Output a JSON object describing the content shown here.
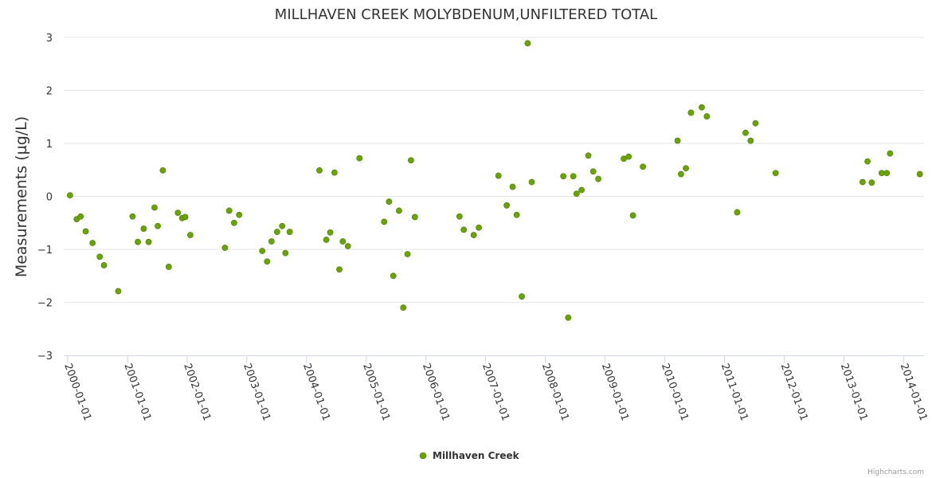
{
  "chart_data": {
    "type": "scatter",
    "title": "MILLHAVEN CREEK MOLYBDENUM,UNFILTERED TOTAL",
    "xlabel": "",
    "ylabel": "Measurements (µg/L)",
    "ylim": [
      -3,
      3
    ],
    "yticks": [
      "3",
      "2",
      "1",
      "0",
      "−1",
      "−2",
      "−3"
    ],
    "xlim": [
      "2000-01-01",
      "2014-05-01"
    ],
    "xticks": [
      "2000-01-01",
      "2001-01-01",
      "2002-01-01",
      "2003-01-01",
      "2004-01-01",
      "2005-01-01",
      "2006-01-01",
      "2007-01-01",
      "2008-01-01",
      "2009-01-01",
      "2010-01-01",
      "2011-01-01",
      "2012-01-01",
      "2013-01-01",
      "2014-01-01"
    ],
    "grid": true,
    "legend_position": "bottom-center",
    "series": [
      {
        "name": "Millhaven Creek",
        "color": "#6aa305",
        "points": [
          {
            "x": "2000-01-15",
            "y": 0.02
          },
          {
            "x": "2000-02-25",
            "y": -0.43
          },
          {
            "x": "2000-03-20",
            "y": -0.38
          },
          {
            "x": "2000-04-20",
            "y": -0.66
          },
          {
            "x": "2000-06-01",
            "y": -0.88
          },
          {
            "x": "2000-07-15",
            "y": -1.14
          },
          {
            "x": "2000-08-10",
            "y": -1.3
          },
          {
            "x": "2000-11-05",
            "y": -1.79
          },
          {
            "x": "2001-02-01",
            "y": -0.38
          },
          {
            "x": "2001-03-05",
            "y": -0.86
          },
          {
            "x": "2001-04-10",
            "y": -0.61
          },
          {
            "x": "2001-05-10",
            "y": -0.86
          },
          {
            "x": "2001-06-15",
            "y": -0.21
          },
          {
            "x": "2001-07-05",
            "y": -0.56
          },
          {
            "x": "2001-08-05",
            "y": 0.49
          },
          {
            "x": "2001-09-10",
            "y": -1.33
          },
          {
            "x": "2001-11-05",
            "y": -0.31
          },
          {
            "x": "2001-12-01",
            "y": -0.41
          },
          {
            "x": "2001-12-20",
            "y": -0.39
          },
          {
            "x": "2002-01-20",
            "y": -0.73
          },
          {
            "x": "2002-08-20",
            "y": -0.97
          },
          {
            "x": "2002-09-15",
            "y": -0.27
          },
          {
            "x": "2002-10-15",
            "y": -0.5
          },
          {
            "x": "2002-11-15",
            "y": -0.35
          },
          {
            "x": "2003-04-05",
            "y": -1.03
          },
          {
            "x": "2003-05-05",
            "y": -1.23
          },
          {
            "x": "2003-06-01",
            "y": -0.85
          },
          {
            "x": "2003-07-05",
            "y": -0.67
          },
          {
            "x": "2003-08-05",
            "y": -0.56
          },
          {
            "x": "2003-08-25",
            "y": -1.07
          },
          {
            "x": "2003-09-20",
            "y": -0.67
          },
          {
            "x": "2004-03-20",
            "y": 0.49
          },
          {
            "x": "2004-05-01",
            "y": -0.82
          },
          {
            "x": "2004-05-25",
            "y": -0.68
          },
          {
            "x": "2004-06-20",
            "y": 0.45
          },
          {
            "x": "2004-07-20",
            "y": -1.38
          },
          {
            "x": "2004-08-10",
            "y": -0.85
          },
          {
            "x": "2004-09-10",
            "y": -0.94
          },
          {
            "x": "2004-11-20",
            "y": 0.72
          },
          {
            "x": "2005-04-20",
            "y": -0.48
          },
          {
            "x": "2005-05-20",
            "y": -0.1
          },
          {
            "x": "2005-06-15",
            "y": -1.5
          },
          {
            "x": "2005-07-20",
            "y": -0.27
          },
          {
            "x": "2005-08-15",
            "y": -2.1
          },
          {
            "x": "2005-09-10",
            "y": -1.09
          },
          {
            "x": "2005-10-01",
            "y": 0.68
          },
          {
            "x": "2005-10-25",
            "y": -0.39
          },
          {
            "x": "2006-07-25",
            "y": -0.38
          },
          {
            "x": "2006-08-20",
            "y": -0.63
          },
          {
            "x": "2006-10-20",
            "y": -0.73
          },
          {
            "x": "2006-11-20",
            "y": -0.59
          },
          {
            "x": "2007-03-20",
            "y": 0.39
          },
          {
            "x": "2007-05-10",
            "y": -0.17
          },
          {
            "x": "2007-06-15",
            "y": 0.18
          },
          {
            "x": "2007-07-10",
            "y": -0.35
          },
          {
            "x": "2007-08-10",
            "y": -1.89
          },
          {
            "x": "2007-09-15",
            "y": 2.89
          },
          {
            "x": "2007-10-10",
            "y": 0.27
          },
          {
            "x": "2008-04-20",
            "y": 0.38
          },
          {
            "x": "2008-05-20",
            "y": -2.29
          },
          {
            "x": "2008-06-20",
            "y": 0.38
          },
          {
            "x": "2008-07-10",
            "y": 0.05
          },
          {
            "x": "2008-08-10",
            "y": 0.12
          },
          {
            "x": "2008-09-20",
            "y": 0.77
          },
          {
            "x": "2008-10-20",
            "y": 0.47
          },
          {
            "x": "2008-11-20",
            "y": 0.33
          },
          {
            "x": "2009-04-25",
            "y": 0.71
          },
          {
            "x": "2009-05-25",
            "y": 0.75
          },
          {
            "x": "2009-06-20",
            "y": -0.36
          },
          {
            "x": "2009-08-20",
            "y": 0.56
          },
          {
            "x": "2010-03-20",
            "y": 1.05
          },
          {
            "x": "2010-04-10",
            "y": 0.42
          },
          {
            "x": "2010-05-10",
            "y": 0.53
          },
          {
            "x": "2010-06-10",
            "y": 1.58
          },
          {
            "x": "2010-08-15",
            "y": 1.68
          },
          {
            "x": "2010-09-15",
            "y": 1.51
          },
          {
            "x": "2011-03-20",
            "y": -0.3
          },
          {
            "x": "2011-05-10",
            "y": 1.2
          },
          {
            "x": "2011-06-10",
            "y": 1.05
          },
          {
            "x": "2011-07-10",
            "y": 1.38
          },
          {
            "x": "2011-11-10",
            "y": 0.44
          },
          {
            "x": "2013-04-25",
            "y": 0.27
          },
          {
            "x": "2013-05-25",
            "y": 0.66
          },
          {
            "x": "2013-06-20",
            "y": 0.26
          },
          {
            "x": "2013-08-20",
            "y": 0.44
          },
          {
            "x": "2013-09-20",
            "y": 0.44
          },
          {
            "x": "2013-10-10",
            "y": 0.81
          },
          {
            "x": "2014-04-10",
            "y": 0.42
          }
        ]
      }
    ]
  },
  "credits": "Highcharts.com"
}
